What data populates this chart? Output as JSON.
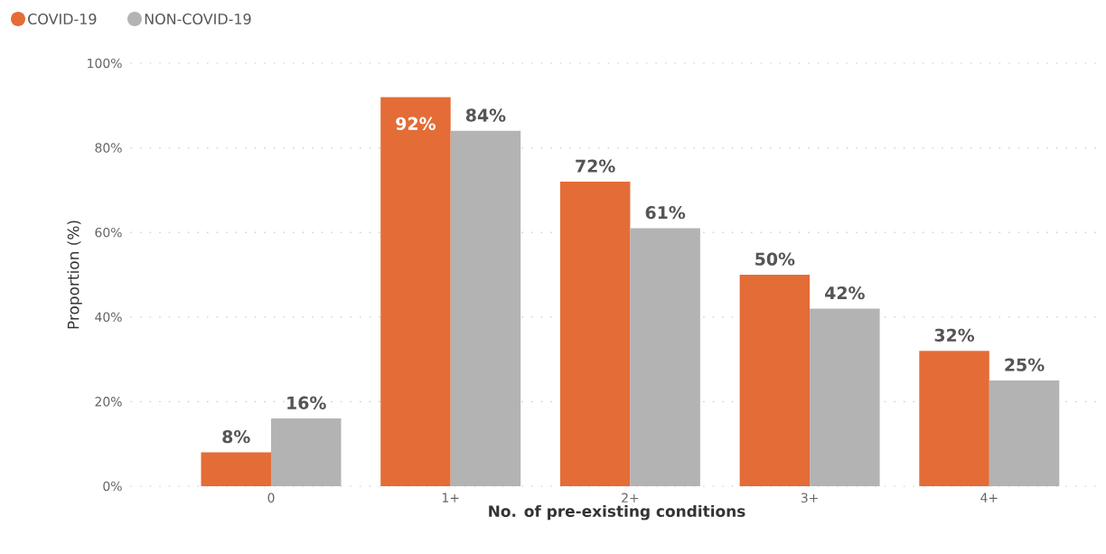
{
  "chart_data": {
    "type": "bar",
    "xlabel": "No. of pre-existing conditions",
    "ylabel": "Proportion (%)",
    "categories": [
      "0",
      "1+",
      "2+",
      "3+",
      "4+"
    ],
    "series": [
      {
        "name": "COVID-19",
        "color": "#e46c37",
        "values": [
          8,
          92,
          72,
          50,
          32
        ],
        "value_labels": [
          "8%",
          "92%",
          "72%",
          "50%",
          "32%"
        ]
      },
      {
        "name": "NON-COVID-19",
        "color": "#b3b3b3",
        "values": [
          16,
          84,
          61,
          42,
          25
        ],
        "value_labels": [
          "16%",
          "84%",
          "61%",
          "42%",
          "25%"
        ]
      }
    ],
    "ylim": [
      0,
      100
    ],
    "yticks": [
      {
        "value": 0,
        "label": "0%"
      },
      {
        "value": 20,
        "label": "20%"
      },
      {
        "value": 40,
        "label": "40%"
      },
      {
        "value": 60,
        "label": "60%"
      },
      {
        "value": 80,
        "label": "80%"
      },
      {
        "value": 100,
        "label": "100%"
      }
    ],
    "grid": "y",
    "legend": "top left"
  }
}
